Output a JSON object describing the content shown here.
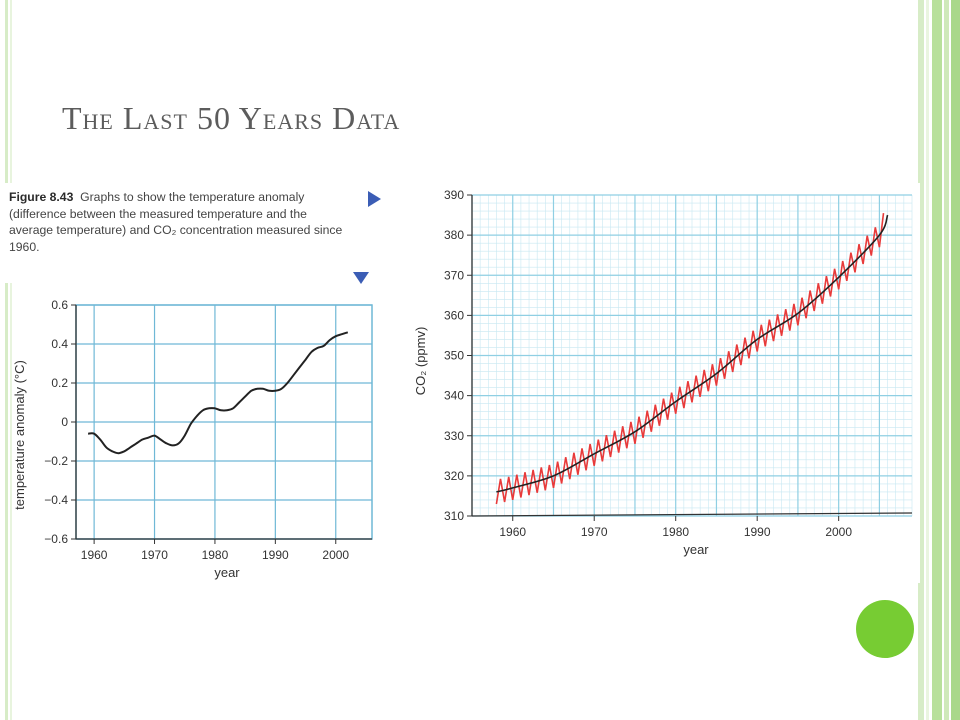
{
  "slide": {
    "title": "The Last 50 Years Data"
  },
  "caption": {
    "label": "Figure 8.43",
    "text": "Graphs to show the temperature anomaly (difference between the measured temperature and the average temperature) and CO₂ concentration measured since 1960."
  },
  "colors": {
    "seasonal_line": "#e83a3a",
    "trend_line": "#222222",
    "grid": "#8fcfe3",
    "minor_grid": "#c8e8f2",
    "accent": "#3b5db5",
    "bullet": "#77cc33"
  },
  "chart_data": [
    {
      "type": "line",
      "title": "",
      "xlabel": "year",
      "ylabel": "temperature anomaly (°C)",
      "xlim": [
        1957,
        2006
      ],
      "ylim": [
        -0.6,
        0.6
      ],
      "x_ticks": [
        "1960",
        "1970",
        "1980",
        "1990",
        "2000"
      ],
      "y_ticks": [
        "0.6",
        "0.4",
        "0.2",
        "0",
        "−0.2",
        "−0.4",
        "−0.6"
      ],
      "grid": true,
      "series": [
        {
          "x": [
            1959,
            1960,
            1961,
            1962,
            1963,
            1964,
            1965,
            1966,
            1967,
            1968,
            1969,
            1970,
            1971,
            1972,
            1973,
            1974,
            1975,
            1976,
            1977,
            1978,
            1979,
            1980,
            1981,
            1982,
            1983,
            1984,
            1985,
            1986,
            1987,
            1988,
            1989,
            1990,
            1991,
            1992,
            1993,
            1994,
            1995,
            1996,
            1997,
            1998,
            1999,
            2000,
            2001,
            2002
          ],
          "y": [
            -0.06,
            -0.06,
            -0.09,
            -0.13,
            -0.15,
            -0.16,
            -0.15,
            -0.13,
            -0.11,
            -0.09,
            -0.08,
            -0.07,
            -0.09,
            -0.11,
            -0.12,
            -0.11,
            -0.07,
            -0.01,
            0.03,
            0.06,
            0.07,
            0.07,
            0.06,
            0.06,
            0.07,
            0.1,
            0.13,
            0.16,
            0.17,
            0.17,
            0.16,
            0.16,
            0.17,
            0.2,
            0.24,
            0.28,
            0.32,
            0.36,
            0.38,
            0.39,
            0.42,
            0.44,
            0.45,
            0.46
          ]
        }
      ]
    },
    {
      "type": "line",
      "title": "",
      "xlabel": "year",
      "ylabel": "CO₂ (ppmv)",
      "xlim": [
        1955,
        2009
      ],
      "ylim": [
        310,
        390
      ],
      "x_ticks": [
        "1960",
        "1970",
        "1980",
        "1990",
        "2000"
      ],
      "y_ticks": [
        "390",
        "380",
        "370",
        "360",
        "350",
        "340",
        "330",
        "320",
        "310"
      ],
      "grid": true,
      "series": [
        {
          "name": "seasonal",
          "x_start": 1958,
          "x_end": 2005.5,
          "seasonal_amplitude": 3
        },
        {
          "name": "trend",
          "x": [
            1958,
            1960,
            1965,
            1970,
            1975,
            1980,
            1985,
            1990,
            1995,
            2000,
            2005,
            2006
          ],
          "y": [
            316,
            317,
            320,
            325.5,
            331,
            338.5,
            345.5,
            354,
            360.5,
            369.5,
            380,
            385
          ]
        }
      ]
    }
  ]
}
